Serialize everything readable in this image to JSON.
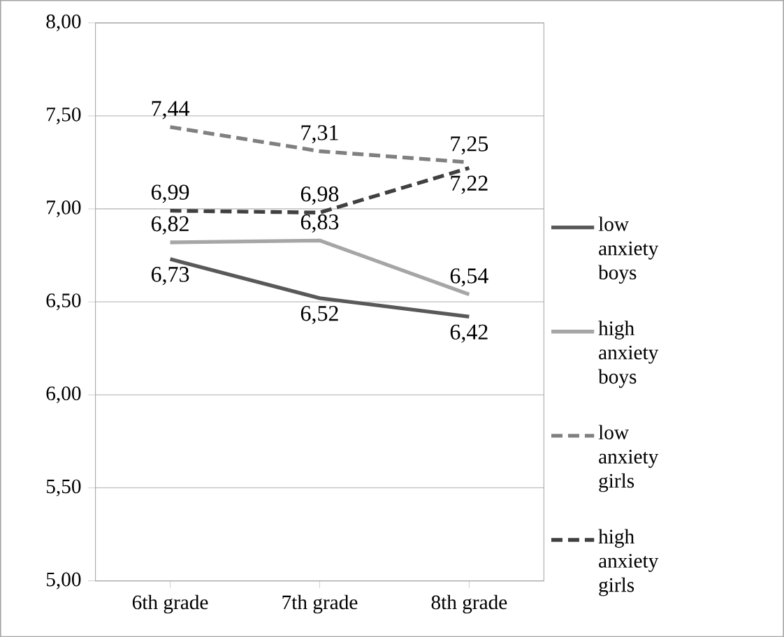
{
  "chart_data": {
    "type": "line",
    "categories": [
      "6th grade",
      "7th grade",
      "8th grade"
    ],
    "ylim": [
      5,
      8
    ],
    "yticks": [
      {
        "value": 5,
        "label": "5,00"
      },
      {
        "value": 5.5,
        "label": "5,50"
      },
      {
        "value": 6,
        "label": "6,00"
      },
      {
        "value": 6.5,
        "label": "6,50"
      },
      {
        "value": 7,
        "label": "7,00"
      },
      {
        "value": 7.5,
        "label": "7,50"
      },
      {
        "value": 8,
        "label": "8,00"
      }
    ],
    "grid": "y",
    "legend": "right",
    "marker": "none",
    "series": [
      {
        "name": "low anxiety boys",
        "color": "#595959",
        "line_style": "solid",
        "values": [
          6.73,
          6.52,
          6.42
        ],
        "value_labels": [
          "6,73",
          "6,52",
          "6,42"
        ]
      },
      {
        "name": "high anxiety boys",
        "color": "#a6a6a6",
        "line_style": "solid",
        "values": [
          6.82,
          6.83,
          6.54
        ],
        "value_labels": [
          "6,82",
          "6,83",
          "6,54"
        ]
      },
      {
        "name": "low anxiety girls",
        "color": "#808080",
        "line_style": "dashed",
        "values": [
          7.44,
          7.31,
          7.25
        ],
        "value_labels": [
          "7,44",
          "7,31",
          "7,25"
        ]
      },
      {
        "name": "high anxiety girls",
        "color": "#404040",
        "line_style": "dashed",
        "values": [
          6.99,
          6.98,
          7.22
        ],
        "value_labels": [
          "6,99",
          "6,98",
          "7,22"
        ]
      }
    ]
  }
}
